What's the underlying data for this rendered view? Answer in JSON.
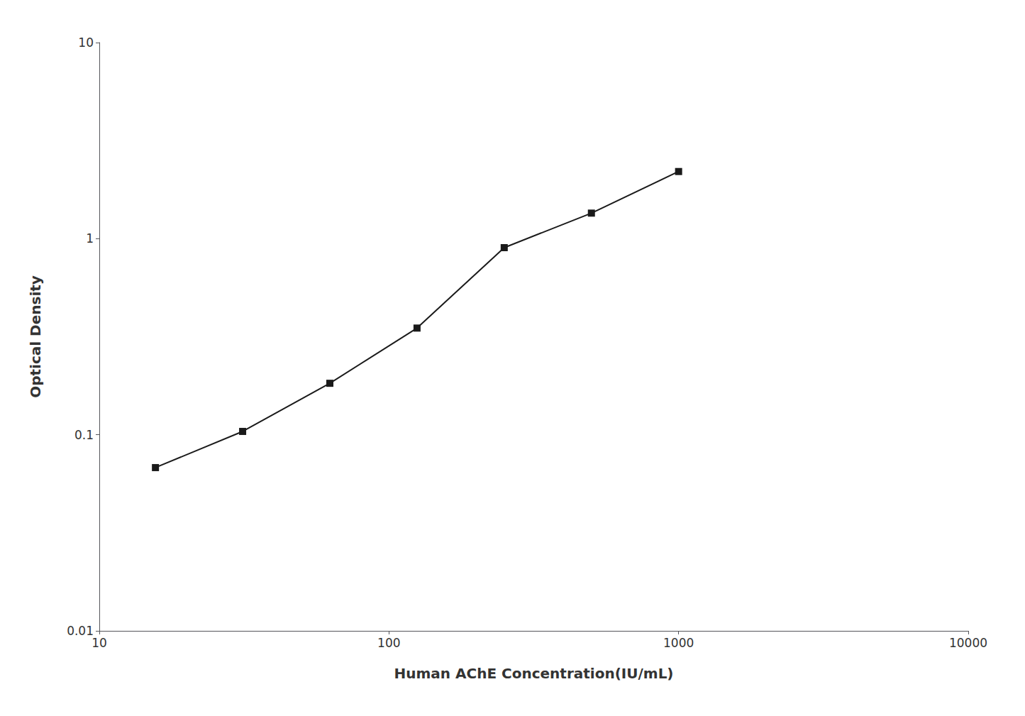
{
  "chart_data": {
    "type": "line",
    "x": [
      15.625,
      31.25,
      62.5,
      125,
      250,
      500,
      1000
    ],
    "values": [
      0.068,
      0.104,
      0.183,
      0.35,
      0.9,
      1.35,
      2.2
    ],
    "xlabel": "Human AChE Concentration(IU/mL)",
    "ylabel": "Optical Density",
    "xlim": [
      10,
      10000
    ],
    "ylim": [
      0.01,
      10
    ],
    "xticks": [
      10,
      100,
      1000,
      10000
    ],
    "yticks": [
      0.01,
      0.1,
      1,
      10
    ],
    "log": true,
    "grid": false,
    "color": "#1a1a1a",
    "marker": "square"
  }
}
